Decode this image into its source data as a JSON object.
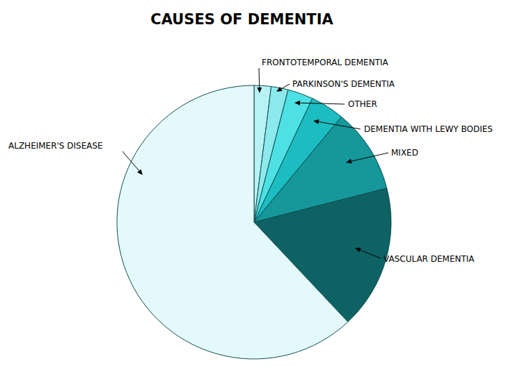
{
  "chart_data": {
    "type": "pie",
    "title": "CAUSES OF DEMENTIA",
    "categories": [
      "FRONTOTEMPORAL DEMENTIA",
      "PARKINSON'S DEMENTIA",
      "OTHER",
      "DEMENTIA WITH LEWY BODIES",
      "MIXED",
      "VASCULAR DEMENTIA",
      "ALZHEIMER'S DISEASE"
    ],
    "values": [
      2,
      2,
      3,
      4,
      10,
      17,
      62
    ],
    "colors": [
      "#b8f2f4",
      "#8ce9ec",
      "#4de0e4",
      "#1cbdc1",
      "#16979a",
      "#0f6264",
      "#e4f9fb"
    ]
  }
}
